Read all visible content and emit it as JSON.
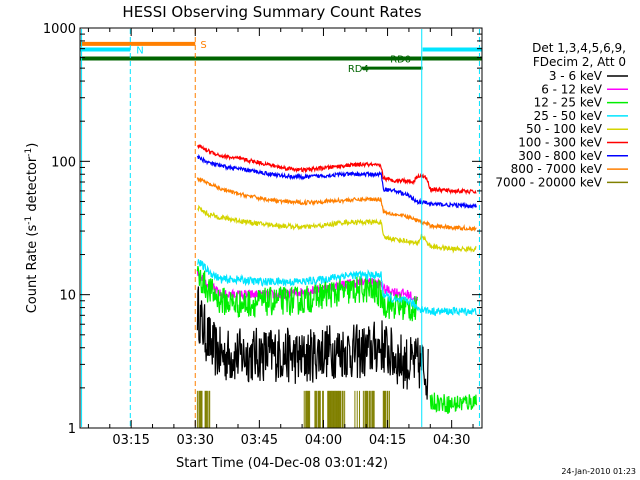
{
  "chart_data": {
    "type": "line",
    "title": "HESSI Observing Summary Count Rates",
    "xlabel": "Start Time (04-Dec-08 03:01:42)",
    "ylabel_main": "Count Rate (s",
    "ylabel_sup1": "-1",
    "ylabel_mid": " detector",
    "ylabel_sup2": "-1",
    "ylabel_end": ")",
    "footer_date": "24-Jan-2010 01:23",
    "y_scale": "log",
    "ylim": [
      1,
      1000
    ],
    "xlim_minutes": [
      3.03,
      97.1
    ],
    "x_ticks": [
      {
        "label": "03:15",
        "min": 15
      },
      {
        "label": "03:30",
        "min": 30
      },
      {
        "label": "03:45",
        "min": 45
      },
      {
        "label": "04:00",
        "min": 60
      },
      {
        "label": "04:15",
        "min": 75
      },
      {
        "label": "04:30",
        "min": 90
      }
    ],
    "y_ticks": [
      {
        "label": "1",
        "value": 1
      },
      {
        "label": "10",
        "value": 10
      },
      {
        "label": "100",
        "value": 100
      },
      {
        "label": "1000",
        "value": 1000
      }
    ],
    "legend": {
      "header": [
        "Det 1,3,4,5,6,9,",
        "FDecim 2, Att 0"
      ],
      "entries": [
        {
          "label": "3 - 6 keV",
          "color": "#000000"
        },
        {
          "label": "6 - 12 keV",
          "color": "#ff00ff"
        },
        {
          "label": "12 - 25 keV",
          "color": "#00ee00"
        },
        {
          "label": "25 - 50 keV",
          "color": "#00e5ff"
        },
        {
          "label": "50 - 100 keV",
          "color": "#d4d400"
        },
        {
          "label": "100 - 300 keV",
          "color": "#ff0000"
        },
        {
          "label": "300 - 800 keV",
          "color": "#0000ff"
        },
        {
          "label": "800 - 7000 keV",
          "color": "#ff7f00"
        },
        {
          "label": "7000 - 20000 keV",
          "color": "#808000"
        }
      ]
    },
    "series": [
      {
        "name": "3 - 6 keV",
        "color": "#000000",
        "noise": 0.35,
        "points": [
          [
            30.5,
            8
          ],
          [
            31.5,
            6
          ],
          [
            32.5,
            5
          ],
          [
            34,
            4
          ],
          [
            36,
            3.5
          ],
          [
            40,
            3.5
          ],
          [
            50,
            3.6
          ],
          [
            55,
            3.3
          ],
          [
            60,
            3.8
          ],
          [
            70,
            3.7
          ],
          [
            73.5,
            4.2
          ],
          [
            76,
            3.5
          ],
          [
            80,
            3
          ],
          [
            83,
            3
          ],
          [
            84.5,
            2.5
          ]
        ]
      },
      {
        "name": "6 - 12 keV",
        "color": "#ff00ff",
        "noise": 0.06,
        "points": [
          [
            30.5,
            15
          ],
          [
            33,
            12
          ],
          [
            36,
            10
          ],
          [
            40,
            10
          ],
          [
            45,
            10
          ],
          [
            50,
            10
          ],
          [
            55,
            10.5
          ],
          [
            60,
            11
          ],
          [
            65,
            12
          ],
          [
            70,
            12.5
          ],
          [
            73.5,
            12
          ],
          [
            74,
            11
          ],
          [
            80,
            10
          ],
          [
            82,
            9
          ]
        ]
      },
      {
        "name": "12 - 25 keV",
        "color": "#00ee00",
        "noise": 0.18,
        "points": [
          [
            30.5,
            14
          ],
          [
            33,
            11
          ],
          [
            36,
            9
          ],
          [
            40,
            8.5
          ],
          [
            45,
            8.7
          ],
          [
            50,
            9
          ],
          [
            55,
            9
          ],
          [
            60,
            10
          ],
          [
            65,
            10.5
          ],
          [
            70,
            11
          ],
          [
            73.5,
            10
          ],
          [
            74,
            8.5
          ],
          [
            80,
            8
          ],
          [
            82,
            7.5
          ]
        ]
      },
      {
        "name": "12 - 25 keV (late)",
        "color": "#00ee00",
        "noise": 0.12,
        "points": [
          [
            85,
            1.6
          ],
          [
            90,
            1.5
          ],
          [
            95.8,
            1.6
          ]
        ]
      },
      {
        "name": "25 - 50 keV",
        "color": "#00e5ff",
        "noise": 0.05,
        "points": [
          [
            30.5,
            18
          ],
          [
            33,
            15
          ],
          [
            36,
            13
          ],
          [
            40,
            13
          ],
          [
            45,
            12.5
          ],
          [
            50,
            12.5
          ],
          [
            55,
            12.5
          ],
          [
            60,
            13
          ],
          [
            65,
            14
          ],
          [
            70,
            14
          ],
          [
            73.5,
            14
          ],
          [
            74,
            10
          ],
          [
            77,
            9
          ],
          [
            80,
            9
          ],
          [
            82,
            8
          ],
          [
            85,
            7.5
          ],
          [
            90,
            7.5
          ],
          [
            95.8,
            7.5
          ]
        ]
      },
      {
        "name": "50 - 100 keV",
        "color": "#d4d400",
        "noise": 0.03,
        "points": [
          [
            30.5,
            45
          ],
          [
            33,
            40
          ],
          [
            36,
            38
          ],
          [
            40,
            36
          ],
          [
            45,
            34
          ],
          [
            50,
            33
          ],
          [
            55,
            32
          ],
          [
            60,
            33
          ],
          [
            65,
            35
          ],
          [
            70,
            35
          ],
          [
            73.5,
            35
          ],
          [
            74,
            27
          ],
          [
            77,
            26
          ],
          [
            80,
            25
          ],
          [
            82,
            24
          ],
          [
            83,
            28
          ],
          [
            85,
            23
          ],
          [
            90,
            22
          ],
          [
            95.8,
            22
          ]
        ]
      },
      {
        "name": "100 - 300 keV",
        "color": "#ff0000",
        "noise": 0.025,
        "points": [
          [
            30.5,
            132
          ],
          [
            33,
            120
          ],
          [
            36,
            110
          ],
          [
            40,
            105
          ],
          [
            45,
            98
          ],
          [
            50,
            90
          ],
          [
            55,
            86
          ],
          [
            60,
            89
          ],
          [
            65,
            93
          ],
          [
            70,
            95
          ],
          [
            73.5,
            92
          ],
          [
            74,
            75
          ],
          [
            76,
            72
          ],
          [
            79,
            72
          ],
          [
            81,
            70
          ],
          [
            82,
            78
          ],
          [
            84,
            76
          ],
          [
            85,
            62
          ],
          [
            90,
            60
          ],
          [
            95.8,
            59
          ]
        ]
      },
      {
        "name": "300 - 800 keV",
        "color": "#0000ff",
        "noise": 0.025,
        "points": [
          [
            30.5,
            108
          ],
          [
            33,
            98
          ],
          [
            36,
            92
          ],
          [
            40,
            88
          ],
          [
            45,
            83
          ],
          [
            50,
            78
          ],
          [
            55,
            76
          ],
          [
            60,
            78
          ],
          [
            65,
            80
          ],
          [
            70,
            80
          ],
          [
            73.5,
            80
          ],
          [
            74,
            62
          ],
          [
            77,
            60
          ],
          [
            80,
            55
          ],
          [
            82,
            50
          ],
          [
            85,
            48
          ],
          [
            90,
            47
          ],
          [
            95.8,
            46
          ]
        ]
      },
      {
        "name": "800 - 7000 keV",
        "color": "#ff7f00",
        "noise": 0.025,
        "points": [
          [
            30.5,
            75
          ],
          [
            33,
            68
          ],
          [
            36,
            62
          ],
          [
            40,
            57
          ],
          [
            45,
            53
          ],
          [
            50,
            50
          ],
          [
            55,
            49
          ],
          [
            60,
            50
          ],
          [
            65,
            51
          ],
          [
            70,
            52
          ],
          [
            73.5,
            52
          ],
          [
            74,
            42
          ],
          [
            77,
            40
          ],
          [
            80,
            38
          ],
          [
            82,
            36
          ],
          [
            85,
            33
          ],
          [
            90,
            32
          ],
          [
            95.8,
            31
          ]
        ]
      }
    ],
    "bars_series": {
      "name": "7000 - 20000 keV",
      "color": "#808000",
      "ranges": [
        [
          30.5,
          33.5
        ],
        [
          55.5,
          57
        ],
        [
          58,
          60
        ],
        [
          61,
          65
        ],
        [
          67,
          72
        ],
        [
          74,
          75.5
        ]
      ],
      "low": 1,
      "high": 1.9
    },
    "flags": [
      {
        "label": "S",
        "color": "#ff7f00",
        "y": 760,
        "x0": 3.03,
        "x1": 30.0,
        "label_x": 31.2,
        "width": 4
      },
      {
        "label": "N",
        "color": "#00e5ff",
        "y": 690,
        "x0": 3.03,
        "x1": 14.8,
        "label_x": 16.2,
        "width": 4
      },
      {
        "label": "N",
        "color": "#00e5ff",
        "y": 690,
        "x0": 83.2,
        "x1": 97.1,
        "label_x": null,
        "width": 4
      },
      {
        "label": "RD0",
        "color": "#006400",
        "y": 590,
        "x0": 3.03,
        "x1": 97.1,
        "label_x": 75.6,
        "width": 4
      },
      {
        "label": "RD4",
        "color": "#006400",
        "y": 500,
        "x0": 69.0,
        "x1": 83.2,
        "label_x": 65.7,
        "width": 3
      }
    ],
    "vlines": [
      {
        "min": 3.4,
        "color": "#00e5ff",
        "style": "solid"
      },
      {
        "min": 14.8,
        "color": "#00e5ff",
        "style": "dashed"
      },
      {
        "min": 30.0,
        "color": "#ff7f00",
        "style": "dashed"
      },
      {
        "min": 83.0,
        "color": "#00e5ff",
        "style": "solid"
      },
      {
        "min": 96.5,
        "color": "#00e5ff",
        "style": "dashed"
      }
    ]
  }
}
